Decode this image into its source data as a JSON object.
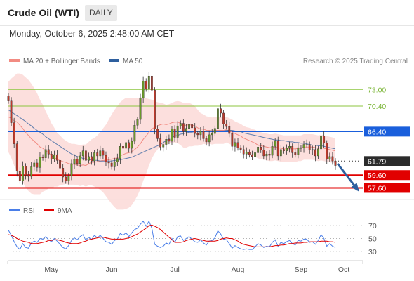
{
  "header": {
    "title": "Crude Oil (WTI)",
    "timeframe": "DAILY",
    "datetime": "Monday, October 6, 2025 2:48:00 AM CET"
  },
  "legend": {
    "ma20_label": "MA 20 + Bollinger Bands",
    "ma50_label": "MA 50",
    "credit": "Research © 2025 Trading Central"
  },
  "chart_data": [
    {
      "type": "candlestick",
      "price_range": [
        56,
        76
      ],
      "x_labels": [
        "May",
        "Jun",
        "Jul",
        "Aug",
        "Sep",
        "Oct"
      ],
      "levels": [
        {
          "value": 73.0,
          "label": "73.00",
          "kind": "resistance",
          "color": "#8cc63f"
        },
        {
          "value": 70.4,
          "label": "70.40",
          "kind": "resistance",
          "color": "#8cc63f"
        },
        {
          "value": 66.4,
          "label": "66.40",
          "kind": "pivot",
          "color": "#1a5fdc"
        },
        {
          "value": 61.79,
          "label": "61.79",
          "kind": "last-price",
          "color": "#2b2b2b"
        },
        {
          "value": 59.6,
          "label": "59.60",
          "kind": "support",
          "color": "#e10000"
        },
        {
          "value": 57.6,
          "label": "57.60",
          "kind": "support",
          "color": "#e10000"
        }
      ],
      "close_series": [
        71.2,
        67.8,
        64.5,
        60.2,
        58.7,
        61.0,
        59.6,
        59.4,
        60.9,
        61.5,
        60.8,
        62.4,
        62.3,
        63.6,
        62.9,
        62.1,
        62.8,
        61.9,
        60.7,
        59.3,
        58.7,
        59.5,
        61.4,
        62.1,
        61.4,
        62.6,
        63.4,
        61.9,
        62.5,
        61.8,
        63.1,
        62.6,
        63.4,
        62.7,
        61.7,
        61.5,
        60.9,
        61.7,
        62.2,
        64.1,
        63.8,
        64.7,
        63.8,
        64.9,
        67.4,
        68.3,
        71.7,
        74.3,
        73.1,
        75.1,
        72.9,
        66.8,
        65.3,
        64.0,
        64.4,
        65.2,
        64.9,
        66.8,
        65.5,
        67.3,
        67.7,
        66.4,
        66.9,
        67.5,
        67.0,
        66.1,
        65.9,
        66.5,
        65.3,
        64.8,
        65.9,
        66.1,
        66.9,
        70.0,
        69.3,
        67.6,
        67.2,
        66.1,
        64.1,
        64.7,
        63.9,
        63.6,
        62.9,
        63.2,
        62.8,
        62.5,
        63.1,
        64.0,
        63.5,
        62.6,
        62.9,
        62.7,
        64.1,
        65.0,
        62.6,
        63.6,
        63.4,
        63.8,
        64.1,
        63.1,
        62.8,
        63.9,
        63.9,
        64.4,
        64.4,
        63.5,
        63.6,
        62.6,
        63.7,
        65.7,
        64.6,
        62.1,
        62.5,
        61.8,
        61.1
      ],
      "ma20_series": [
        68.7,
        68.5,
        68.1,
        67.9,
        67.4,
        66.9,
        66.3,
        65.8,
        65.3,
        64.9,
        64.5,
        64.0,
        63.8,
        63.4,
        63.1,
        62.6,
        62.4,
        62.0,
        61.9,
        61.7,
        61.6,
        61.4,
        61.3,
        61.3,
        61.2,
        61.1,
        61.2,
        61.1,
        61.4,
        61.6,
        61.6,
        61.7,
        61.8,
        61.9,
        61.9,
        62.0,
        62.1,
        62.2,
        62.3,
        62.6,
        62.8,
        63.0,
        63.1,
        63.3,
        63.6,
        64.0,
        64.5,
        65.2,
        65.7,
        66.3,
        66.8,
        67.1,
        67.3,
        67.5,
        67.6,
        67.5,
        67.6,
        67.8,
        67.9,
        67.9,
        67.7,
        67.4,
        67.4,
        67.5,
        67.4,
        67.3,
        67.0,
        66.8,
        66.8,
        66.6,
        66.6,
        66.5,
        66.6,
        66.6,
        66.6,
        66.6,
        66.7,
        66.5,
        66.3,
        66.1,
        65.9,
        65.7,
        65.4,
        65.2,
        65.0,
        64.8,
        64.6,
        64.3,
        64.2,
        64.1,
        64.0,
        63.9,
        63.9,
        64.0,
        63.9,
        63.8,
        63.7,
        63.7,
        63.7,
        63.7,
        63.7,
        63.8,
        63.8,
        64.0,
        64.0,
        64.0,
        64.0,
        63.9,
        63.8,
        63.9,
        63.8,
        63.7,
        63.6,
        63.5,
        63.4
      ],
      "bb_width_series": [
        5.5,
        6.2,
        7.0,
        7.6,
        8.1,
        8.4,
        8.6,
        8.7,
        8.6,
        8.3,
        7.9,
        7.4,
        6.8,
        6.2,
        5.6,
        5.1,
        4.6,
        4.2,
        3.9,
        3.6,
        3.4,
        3.3,
        3.2,
        3.2,
        3.2,
        3.2,
        3.2,
        3.3,
        3.4,
        3.6,
        3.8,
        4.1,
        4.5,
        5.0,
        5.6,
        6.3,
        7.0,
        7.6,
        8.1,
        8.4,
        8.6,
        8.7,
        8.6,
        8.4,
        8.0,
        7.6,
        7.1,
        6.5,
        5.9,
        5.2,
        4.6,
        4.1,
        3.7,
        3.4,
        3.2,
        3.1,
        3.1,
        3.1,
        3.2,
        3.3,
        3.4,
        3.5,
        3.5,
        3.4,
        3.3,
        3.1,
        2.8,
        2.5,
        2.3,
        2.2,
        2.1,
        2.1,
        2.1,
        2.1,
        2.1,
        2.1,
        2.0,
        2.0,
        2.0,
        1.9,
        1.9,
        1.9,
        1.9,
        1.9,
        2.0,
        2.0,
        2.1,
        2.1,
        2.1,
        2.1,
        2.1,
        2.1,
        2.1,
        2.1,
        2.1,
        2.1,
        2.1,
        2.1,
        2.1,
        2.1,
        2.1,
        2.0,
        2.0,
        2.0,
        2.0,
        2.0,
        2.0,
        2.0,
        2.0,
        2.0,
        2.0,
        2.0,
        2.0,
        2.0,
        2.0
      ],
      "ma50_series": [
        69.8,
        69.5,
        69.2,
        68.9,
        68.6,
        68.3,
        68.0,
        67.6,
        67.3,
        66.9,
        66.6,
        66.3,
        66.0,
        65.6,
        65.3,
        65.0,
        64.7,
        64.4,
        64.1,
        63.8,
        63.5,
        63.2,
        62.9,
        62.7,
        62.5,
        62.4,
        62.2,
        62.1,
        62.0,
        62.0,
        61.9,
        61.9,
        61.8,
        61.8,
        61.8,
        61.8,
        61.8,
        61.9,
        61.9,
        62.0,
        62.1,
        62.2,
        62.3,
        62.4,
        62.6,
        62.8,
        63.0,
        63.2,
        63.4,
        63.6,
        63.8,
        64.0,
        64.2,
        64.4,
        64.7,
        65.0,
        65.3,
        65.5,
        65.7,
        65.8,
        66.0,
        66.1,
        66.2,
        66.3,
        66.3,
        66.4,
        66.4,
        66.4,
        66.4,
        66.4,
        66.5,
        66.5,
        66.5,
        66.5,
        66.5,
        66.5,
        66.6,
        66.6,
        66.6,
        66.5,
        66.4,
        66.4,
        66.2,
        66.1,
        66.0,
        65.9,
        65.8,
        65.7,
        65.6,
        65.5,
        65.4,
        65.3,
        65.2,
        65.1,
        65.1,
        65.0,
        65.0,
        64.9,
        64.8,
        64.8,
        64.7,
        64.7,
        64.6,
        64.6,
        64.5,
        64.4,
        64.3,
        64.3,
        64.2,
        64.2,
        64.1,
        64.0,
        63.9,
        63.8,
        63.7
      ],
      "forecast_arrow": {
        "from": 61.4,
        "to": 57.6,
        "direction": "down",
        "color": "#2e5f9e"
      }
    },
    {
      "type": "line",
      "title": "RSI",
      "legend": [
        "RSI",
        "9MA"
      ],
      "y_ticks": [
        70,
        50,
        30
      ],
      "ylim": [
        20,
        80
      ],
      "rsi_series": [
        63,
        55,
        45,
        37,
        33,
        42,
        36,
        35,
        43,
        46,
        44,
        50,
        49,
        53,
        48,
        45,
        50,
        46,
        41,
        36,
        34,
        39,
        47,
        51,
        48,
        53,
        56,
        47,
        52,
        48,
        55,
        51,
        55,
        50,
        45,
        44,
        41,
        47,
        49,
        58,
        55,
        59,
        53,
        59,
        64,
        66,
        72,
        77,
        69,
        77,
        66,
        41,
        38,
        36,
        38,
        43,
        41,
        50,
        44,
        53,
        54,
        47,
        50,
        53,
        49,
        45,
        44,
        48,
        43,
        40,
        46,
        47,
        51,
        62,
        57,
        49,
        48,
        42,
        35,
        39,
        36,
        34,
        33,
        34,
        33,
        33,
        37,
        42,
        40,
        36,
        38,
        37,
        44,
        48,
        38,
        44,
        42,
        45,
        47,
        42,
        40,
        47,
        46,
        49,
        49,
        44,
        45,
        41,
        47,
        56,
        50,
        38,
        42,
        38,
        36
      ],
      "ma9_series": [
        56,
        55,
        53,
        50,
        48,
        46,
        45,
        44,
        42,
        42,
        42,
        43,
        44,
        45,
        47,
        47,
        48,
        48,
        47,
        46,
        44,
        43,
        42,
        42,
        42,
        43,
        45,
        46,
        48,
        49,
        50,
        51,
        52,
        52,
        51,
        50,
        49,
        49,
        49,
        49,
        49,
        50,
        51,
        53,
        55,
        57,
        60,
        63,
        66,
        70,
        71,
        69,
        67,
        64,
        60,
        56,
        52,
        48,
        44,
        44,
        44,
        45,
        47,
        48,
        49,
        50,
        49,
        48,
        47,
        46,
        46,
        46,
        46,
        47,
        49,
        50,
        51,
        50,
        50,
        48,
        46,
        43,
        41,
        40,
        39,
        38,
        37,
        37,
        37,
        37,
        37,
        37,
        38,
        39,
        39,
        40,
        40,
        41,
        42,
        42,
        43,
        43,
        43,
        44,
        44,
        45,
        45,
        45,
        45,
        46,
        46,
        46,
        45,
        45,
        44
      ]
    }
  ]
}
